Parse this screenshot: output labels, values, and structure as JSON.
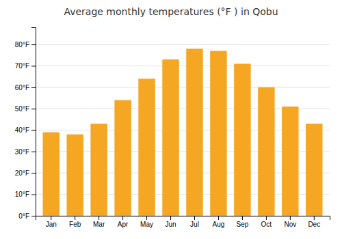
{
  "chart_data": {
    "type": "bar",
    "title": "Average monthly temperatures (°F ) in Qobu",
    "categories": [
      "Jan",
      "Feb",
      "Mar",
      "Apr",
      "May",
      "Jun",
      "Jul",
      "Aug",
      "Sep",
      "Oct",
      "Nov",
      "Dec"
    ],
    "values": [
      39,
      38,
      43,
      54,
      64,
      73,
      78,
      77,
      71,
      60,
      51,
      43
    ],
    "color": "#F5A623",
    "ylim": [
      0,
      88
    ],
    "yticks": [
      {
        "value": 0,
        "label": "0°F"
      },
      {
        "value": 10,
        "label": "10°F"
      },
      {
        "value": 20,
        "label": "20°F"
      },
      {
        "value": 30,
        "label": "30°F"
      },
      {
        "value": 40,
        "label": "40°F"
      },
      {
        "value": 50,
        "label": "50°F"
      },
      {
        "value": 60,
        "label": "60°F"
      },
      {
        "value": 70,
        "label": "70°F"
      },
      {
        "value": 80,
        "label": "80°F"
      }
    ],
    "grid": true
  }
}
